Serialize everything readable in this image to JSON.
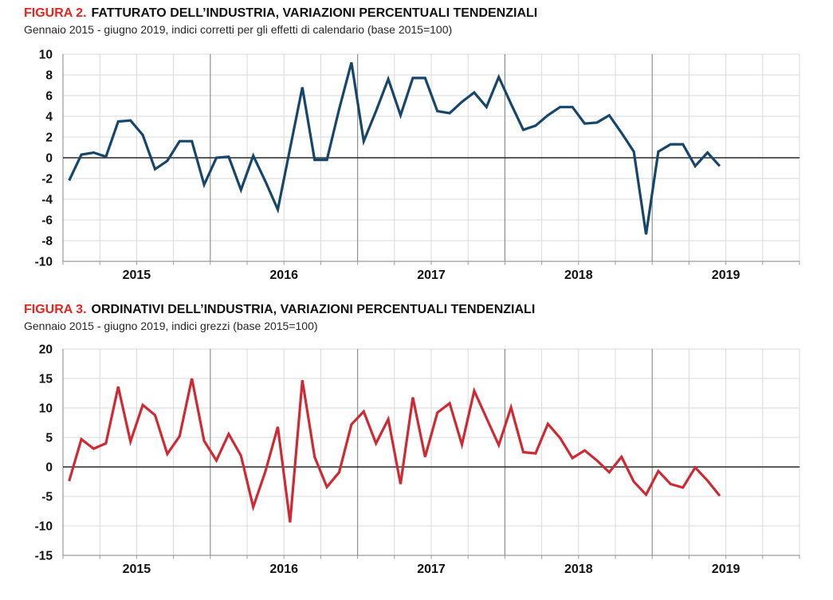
{
  "page": {
    "background": "#ffffff"
  },
  "chart_data": [
    {
      "type": "line",
      "figure_label": "FIGURA 2.",
      "title": "FATTURATO DELL’INDUSTRIA, VARIAZIONI PERCENTUALI TENDENZIALI",
      "subtitle": "Gennaio 2015 - giugno 2019, indici corretti per gli effetti di calendario (base 2015=100)",
      "series_name": "Fatturato dell'industria, variazione % tendenziale",
      "x_frequency": "monthly",
      "x_start": "2015-01",
      "x_end": "2019-06",
      "year_labels": [
        "2015",
        "2016",
        "2017",
        "2018",
        "2019"
      ],
      "ylim": [
        -10,
        10
      ],
      "ytick_step": 2,
      "ytick_labels": [
        "10",
        "8",
        "6",
        "4",
        "2",
        "0",
        "-2",
        "-4",
        "-6",
        "-8",
        "-10"
      ],
      "grid": {
        "horizontal": "every 2",
        "vertical": "quarterly, darker at year boundaries"
      },
      "legend": "none",
      "line_color": "#17466b",
      "values": [
        -2.2,
        0.3,
        0.5,
        0.1,
        3.5,
        3.6,
        2.2,
        -1.1,
        -0.3,
        1.6,
        1.6,
        -2.6,
        0.0,
        0.1,
        -3.1,
        0.2,
        -2.3,
        -5.0,
        0.9,
        6.8,
        -0.2,
        -0.2,
        4.7,
        9.2,
        1.6,
        4.5,
        7.6,
        4.1,
        7.7,
        7.7,
        4.5,
        4.3,
        5.4,
        6.3,
        4.9,
        7.8,
        5.2,
        2.7,
        3.1,
        4.1,
        4.9,
        4.9,
        3.3,
        3.4,
        4.1,
        2.4,
        0.6,
        -7.4,
        0.6,
        1.3,
        1.3,
        -0.8,
        0.5,
        -0.8
      ]
    },
    {
      "type": "line",
      "figure_label": "FIGURA 3.",
      "title": "ORDINATIVI DELL’INDUSTRIA, VARIAZIONI PERCENTUALI TENDENZIALI",
      "subtitle": "Gennaio 2015 - giugno 2019, indici grezzi (base 2015=100)",
      "series_name": "Ordinativi dell'industria, variazione % tendenziale",
      "x_frequency": "monthly",
      "x_start": "2015-01",
      "x_end": "2019-06",
      "year_labels": [
        "2015",
        "2016",
        "2017",
        "2018",
        "2019"
      ],
      "ylim": [
        -15,
        20
      ],
      "ytick_step": 5,
      "ytick_labels": [
        "20",
        "15",
        "10",
        "5",
        "0",
        "-5",
        "-10",
        "-15"
      ],
      "grid": {
        "horizontal": "every 5",
        "vertical": "quarterly, darker at year boundaries"
      },
      "legend": "none",
      "line_color": "#cf2a33",
      "values": [
        -2.4,
        4.7,
        3.1,
        4.0,
        13.6,
        4.3,
        10.5,
        8.8,
        2.2,
        5.2,
        15.0,
        4.4,
        1.1,
        5.6,
        1.9,
        -6.8,
        -0.7,
        6.8,
        -9.4,
        14.7,
        1.7,
        -3.4,
        -0.9,
        7.2,
        9.4,
        4.0,
        8.1,
        -2.9,
        11.8,
        1.7,
        9.2,
        10.8,
        3.8,
        12.9,
        8.3,
        3.7,
        10.1,
        2.5,
        2.3,
        7.3,
        4.9,
        1.5,
        2.8,
        1.1,
        -0.9,
        1.7,
        -2.5,
        -4.7,
        -0.7,
        -2.9,
        -3.5,
        -0.1,
        -2.3,
        -4.9
      ]
    }
  ],
  "style_colors": {
    "grid_light": "#d9d9d9",
    "grid_year": "#8f8f8f",
    "zero_line": "#262626",
    "axis": "#9a9a9a",
    "tick_label": "#111111"
  }
}
